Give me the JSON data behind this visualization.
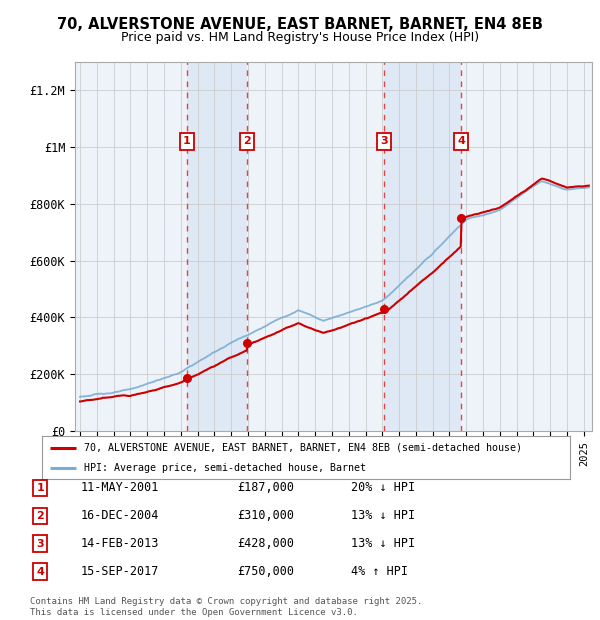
{
  "title_line1": "70, ALVERSTONE AVENUE, EAST BARNET, BARNET, EN4 8EB",
  "title_line2": "Price paid vs. HM Land Registry's House Price Index (HPI)",
  "ylabel_ticks": [
    "£0",
    "£200K",
    "£400K",
    "£600K",
    "£800K",
    "£1M",
    "£1.2M"
  ],
  "ytick_values": [
    0,
    200000,
    400000,
    600000,
    800000,
    1000000,
    1200000
  ],
  "ylim": [
    0,
    1300000
  ],
  "xlim_start": 1994.7,
  "xlim_end": 2025.5,
  "sale_color": "#cc0000",
  "hpi_color": "#7aadd4",
  "sale_label": "70, ALVERSTONE AVENUE, EAST BARNET, BARNET, EN4 8EB (semi-detached house)",
  "hpi_label": "HPI: Average price, semi-detached house, Barnet",
  "purchases": [
    {
      "num": 1,
      "date": "11-MAY-2001",
      "price": 187000,
      "hpi_rel": "20% ↓ HPI",
      "year": 2001.36
    },
    {
      "num": 2,
      "date": "16-DEC-2004",
      "price": 310000,
      "hpi_rel": "13% ↓ HPI",
      "year": 2004.96
    },
    {
      "num": 3,
      "date": "14-FEB-2013",
      "price": 428000,
      "hpi_rel": "13% ↓ HPI",
      "year": 2013.12
    },
    {
      "num": 4,
      "date": "15-SEP-2017",
      "price": 750000,
      "hpi_rel": "4% ↑ HPI",
      "year": 2017.71
    }
  ],
  "footer": "Contains HM Land Registry data © Crown copyright and database right 2025.\nThis data is licensed under the Open Government Licence v3.0.",
  "background_color": "#ffffff",
  "chart_bg": "#eef3fa",
  "shade_color": "#dde8f5",
  "grid_color": "#cccccc",
  "dashed_color": "#dd3333"
}
